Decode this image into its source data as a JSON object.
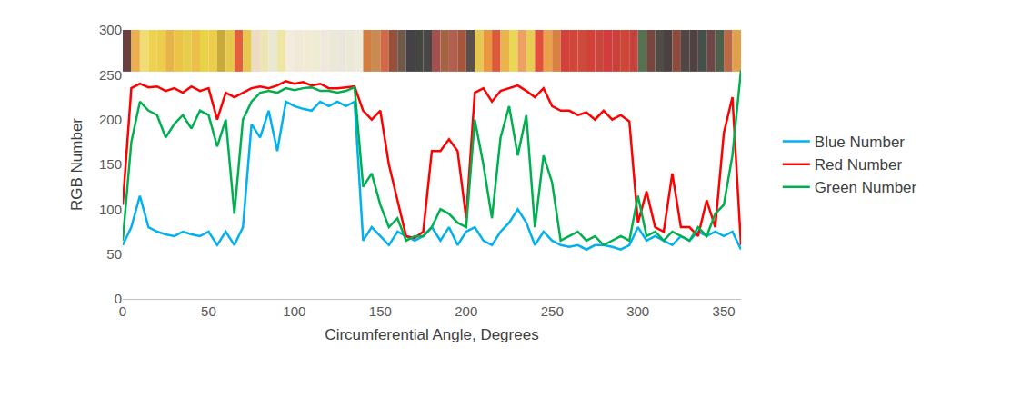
{
  "chart_data": {
    "type": "line",
    "x_label": "Circumferential Angle, Degrees",
    "y_label": "RGB Number",
    "x": [
      0,
      5,
      10,
      15,
      20,
      25,
      30,
      35,
      40,
      45,
      50,
      55,
      60,
      65,
      70,
      75,
      80,
      85,
      90,
      95,
      100,
      105,
      110,
      115,
      120,
      125,
      130,
      135,
      140,
      145,
      150,
      155,
      160,
      165,
      170,
      175,
      180,
      185,
      190,
      195,
      200,
      205,
      210,
      215,
      220,
      225,
      230,
      235,
      240,
      245,
      250,
      255,
      260,
      265,
      270,
      275,
      280,
      285,
      290,
      295,
      300,
      305,
      310,
      315,
      320,
      325,
      330,
      335,
      340,
      345,
      350,
      355,
      360
    ],
    "series": [
      {
        "name": "Blue Number",
        "color": "#00b0f0",
        "values": [
          60,
          80,
          115,
          80,
          75,
          72,
          70,
          75,
          72,
          70,
          75,
          60,
          75,
          60,
          80,
          195,
          180,
          210,
          165,
          220,
          215,
          212,
          210,
          220,
          215,
          220,
          215,
          220,
          65,
          80,
          70,
          60,
          75,
          70,
          65,
          70,
          80,
          65,
          80,
          60,
          75,
          80,
          65,
          60,
          75,
          85,
          100,
          85,
          60,
          75,
          65,
          60,
          58,
          60,
          55,
          60,
          60,
          58,
          55,
          60,
          80,
          65,
          70,
          65,
          60,
          70,
          65,
          75,
          70,
          75,
          70,
          75,
          55
        ]
      },
      {
        "name": "Red Number",
        "color": "#ff0000",
        "values": [
          105,
          235,
          240,
          236,
          237,
          232,
          235,
          230,
          237,
          232,
          235,
          200,
          230,
          225,
          230,
          235,
          237,
          235,
          238,
          243,
          240,
          242,
          238,
          240,
          235,
          235,
          236,
          237,
          210,
          200,
          210,
          150,
          110,
          70,
          68,
          75,
          165,
          165,
          178,
          165,
          90,
          230,
          235,
          220,
          232,
          235,
          238,
          232,
          225,
          235,
          215,
          210,
          210,
          205,
          208,
          200,
          210,
          200,
          205,
          198,
          85,
          120,
          80,
          75,
          140,
          80,
          80,
          70,
          110,
          80,
          185,
          225,
          60
        ]
      },
      {
        "name": "Green Number",
        "color": "#00b050",
        "values": [
          65,
          175,
          220,
          210,
          205,
          180,
          195,
          205,
          190,
          210,
          205,
          170,
          200,
          95,
          200,
          220,
          230,
          232,
          230,
          235,
          233,
          235,
          236,
          232,
          232,
          230,
          232,
          236,
          125,
          140,
          105,
          80,
          90,
          65,
          70,
          70,
          80,
          100,
          95,
          85,
          80,
          200,
          150,
          90,
          180,
          215,
          160,
          205,
          80,
          160,
          130,
          65,
          70,
          75,
          65,
          70,
          60,
          65,
          70,
          65,
          115,
          70,
          75,
          65,
          75,
          70,
          65,
          80,
          70,
          95,
          105,
          160,
          255
        ]
      }
    ],
    "xlim": [
      0,
      360
    ],
    "xticks": [
      0,
      50,
      100,
      150,
      200,
      250,
      300,
      350
    ],
    "ylim": [
      0,
      300
    ],
    "yticks": [
      0,
      50,
      100,
      150,
      200,
      250,
      300
    ],
    "grid": false,
    "legend": "right"
  }
}
